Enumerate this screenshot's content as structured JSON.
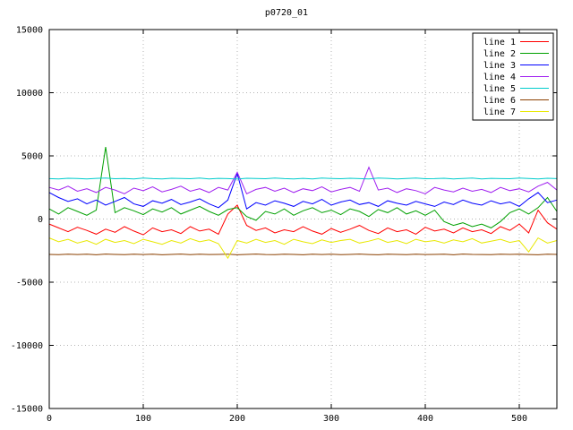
{
  "window": {
    "title": "p0720_01"
  },
  "chart_data": {
    "type": "line",
    "title": "p0720_01",
    "xlabel": "",
    "ylabel": "",
    "xlim": [
      0,
      540
    ],
    "ylim": [
      -15000,
      15000
    ],
    "xticks": [
      0,
      100,
      200,
      300,
      400,
      500
    ],
    "yticks": [
      -15000,
      -10000,
      -5000,
      0,
      5000,
      10000,
      15000
    ],
    "grid": true,
    "grid_color": "#b4b4b4",
    "axis_color": "#000000",
    "background": "#ffffff",
    "legend_position": "top-right",
    "x_start": 0,
    "x_step": 10,
    "series": [
      {
        "name": "line 1",
        "color": "#ff0000",
        "values": [
          -400,
          -700,
          -1000,
          -650,
          -900,
          -1200,
          -800,
          -1050,
          -600,
          -950,
          -1250,
          -700,
          -1000,
          -850,
          -1150,
          -600,
          -950,
          -800,
          -1200,
          400,
          1100,
          -500,
          -900,
          -700,
          -1100,
          -850,
          -1000,
          -600,
          -950,
          -1200,
          -750,
          -1050,
          -800,
          -500,
          -900,
          -1150,
          -700,
          -1000,
          -850,
          -1200,
          -650,
          -950,
          -800,
          -1100,
          -700,
          -1000,
          -850,
          -1150,
          -600,
          -900,
          -400,
          -1100,
          700,
          -300,
          -800
        ]
      },
      {
        "name": "line 2",
        "color": "#00a000",
        "values": [
          800,
          400,
          900,
          600,
          300,
          700,
          5700,
          500,
          900,
          650,
          350,
          800,
          550,
          900,
          400,
          700,
          1000,
          600,
          300,
          750,
          900,
          200,
          -100,
          600,
          400,
          800,
          300,
          650,
          900,
          500,
          700,
          350,
          800,
          600,
          200,
          750,
          500,
          900,
          400,
          650,
          300,
          700,
          -200,
          -500,
          -300,
          -600,
          -400,
          -700,
          -200,
          500,
          800,
          400,
          900,
          1700,
          600
        ]
      },
      {
        "name": "line 3",
        "color": "#0000ff",
        "values": [
          2100,
          1700,
          1400,
          1600,
          1200,
          1500,
          1100,
          1400,
          1700,
          1200,
          1000,
          1450,
          1250,
          1550,
          1150,
          1350,
          1600,
          1200,
          900,
          1500,
          3600,
          800,
          1300,
          1100,
          1450,
          1250,
          1000,
          1400,
          1200,
          1550,
          1100,
          1350,
          1500,
          1150,
          1300,
          1000,
          1450,
          1250,
          1100,
          1400,
          1200,
          1000,
          1350,
          1150,
          1500,
          1250,
          1100,
          1450,
          1200,
          1350,
          1000,
          1600,
          2100,
          1300,
          1500
        ]
      },
      {
        "name": "line 4",
        "color": "#a020f0",
        "values": [
          2500,
          2300,
          2600,
          2200,
          2400,
          2100,
          2500,
          2300,
          2000,
          2450,
          2250,
          2550,
          2150,
          2350,
          2600,
          2200,
          2400,
          2100,
          2500,
          2300,
          3700,
          2000,
          2350,
          2500,
          2200,
          2450,
          2100,
          2400,
          2250,
          2550,
          2150,
          2350,
          2500,
          2200,
          4100,
          2300,
          2450,
          2100,
          2400,
          2250,
          2000,
          2500,
          2300,
          2150,
          2450,
          2200,
          2350,
          2100,
          2500,
          2250,
          2400,
          2150,
          2600,
          2900,
          2300
        ]
      },
      {
        "name": "line 5",
        "color": "#00cccc",
        "values": [
          3200,
          3180,
          3230,
          3210,
          3170,
          3220,
          3240,
          3190,
          3210,
          3180,
          3250,
          3200,
          3170,
          3230,
          3210,
          3190,
          3240,
          3180,
          3220,
          3200,
          3160,
          3230,
          3210,
          3190,
          3250,
          3200,
          3180,
          3220,
          3170,
          3240,
          3210,
          3190,
          3230,
          3200,
          3180,
          3250,
          3220,
          3170,
          3210,
          3240,
          3190,
          3200,
          3230,
          3180,
          3210,
          3250,
          3170,
          3220,
          3200,
          3190,
          3240,
          3210,
          3180,
          3230,
          3200
        ]
      },
      {
        "name": "line 6",
        "color": "#8b4000",
        "values": [
          -2800,
          -2820,
          -2780,
          -2810,
          -2790,
          -2830,
          -2770,
          -2800,
          -2820,
          -2790,
          -2810,
          -2780,
          -2830,
          -2800,
          -2770,
          -2820,
          -2790,
          -2810,
          -2800,
          -2780,
          -2830,
          -2800,
          -2770,
          -2810,
          -2820,
          -2790,
          -2800,
          -2830,
          -2780,
          -2810,
          -2790,
          -2820,
          -2800,
          -2770,
          -2810,
          -2830,
          -2790,
          -2800,
          -2820,
          -2780,
          -2810,
          -2800,
          -2790,
          -2830,
          -2770,
          -2800,
          -2810,
          -2820,
          -2790,
          -2800,
          -2780,
          -2810,
          -2830,
          -2790,
          -2800
        ]
      },
      {
        "name": "line 7",
        "color": "#e8e800",
        "values": [
          -1500,
          -1800,
          -1600,
          -1900,
          -1700,
          -2000,
          -1600,
          -1850,
          -1700,
          -1950,
          -1600,
          -1800,
          -2000,
          -1700,
          -1900,
          -1550,
          -1800,
          -1650,
          -1950,
          -3100,
          -1700,
          -1900,
          -1600,
          -1850,
          -1700,
          -2000,
          -1600,
          -1800,
          -1950,
          -1650,
          -1850,
          -1700,
          -1600,
          -1900,
          -1750,
          -1550,
          -1850,
          -1700,
          -1950,
          -1600,
          -1800,
          -1700,
          -1900,
          -1650,
          -1800,
          -1550,
          -1900,
          -1750,
          -1600,
          -1850,
          -1700,
          -2600,
          -1500,
          -1900,
          -1700
        ]
      }
    ]
  }
}
